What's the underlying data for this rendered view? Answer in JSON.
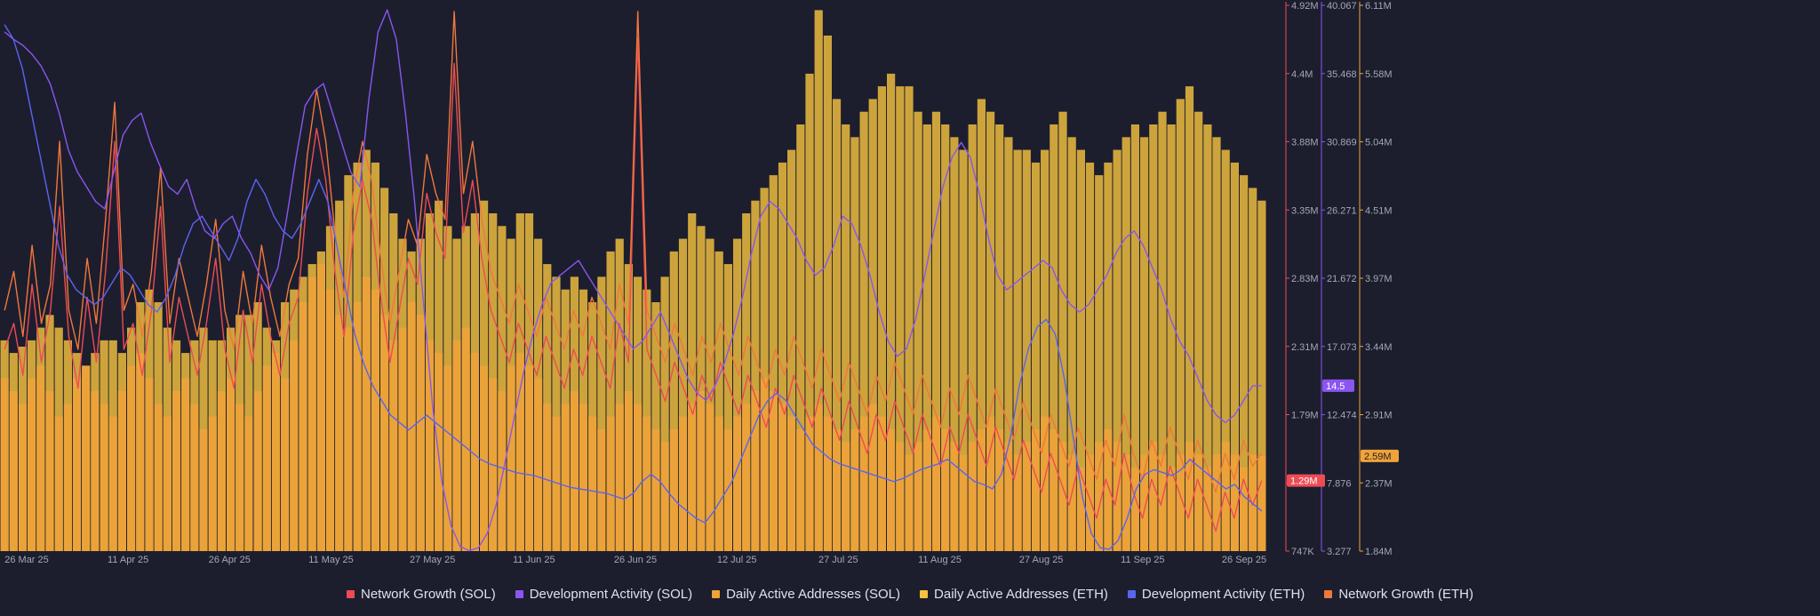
{
  "colors": {
    "background": "#1c1e2e",
    "network_growth_sol": "#ee4b55",
    "development_activity_sol": "#8a55f0",
    "daily_active_addresses_sol": "#f0a338",
    "daily_active_addresses_eth": "#f4c23f",
    "development_activity_eth": "#5a64f0",
    "network_growth_eth": "#f0773c"
  },
  "chart_data": {
    "type": "bar",
    "x_ticks": [
      "26 Mar 25",
      "11 Apr 25",
      "26 Apr 25",
      "11 May 25",
      "27 May 25",
      "11 Jun 25",
      "26 Jun 25",
      "12 Jul 25",
      "27 Jul 25",
      "11 Aug 25",
      "27 Aug 25",
      "11 Sep 25",
      "26 Sep 25"
    ],
    "x_range": [
      "2025-03-26",
      "2025-09-26"
    ],
    "axes": [
      {
        "id": "network_growth",
        "color": "#ee4b55",
        "ticks": [
          "4.92M",
          "4.4M",
          "3.88M",
          "3.35M",
          "2.83M",
          "2.31M",
          "1.79M",
          "1.29M",
          "747K"
        ],
        "range": [
          747000,
          4920000
        ]
      },
      {
        "id": "development_activity",
        "color": "#8a55f0",
        "ticks": [
          "40.067",
          "35.468",
          "30.869",
          "26.271",
          "21.672",
          "17.073",
          "12.474",
          "7.876",
          "3.277"
        ],
        "range": [
          3.277,
          40.067
        ]
      },
      {
        "id": "daily_active_addresses",
        "color": "#f0a338",
        "ticks": [
          "6.11M",
          "5.58M",
          "5.04M",
          "4.51M",
          "3.97M",
          "3.44M",
          "2.91M",
          "2.37M",
          "1.84M"
        ],
        "range": [
          1840000,
          6110000
        ]
      }
    ],
    "value_badges": [
      {
        "axis": "network_growth",
        "label": "1.29M",
        "color": "#ee4b55",
        "value": 1290000
      },
      {
        "axis": "development_activity",
        "label": "14.5",
        "color": "#8a55f0",
        "value": 14.5
      },
      {
        "axis": "daily_active_addresses",
        "label": "2.59M",
        "color": "#f0a338",
        "value": 2590000
      }
    ],
    "series": [
      {
        "name": "Daily Active Addresses (ETH)",
        "type": "bar",
        "axis": "daily_active_addresses",
        "values_millions": [
          3.5,
          3.4,
          3.45,
          3.5,
          3.6,
          3.7,
          3.6,
          3.5,
          3.4,
          3.3,
          3.4,
          3.5,
          3.5,
          3.4,
          3.6,
          3.8,
          3.9,
          3.8,
          3.6,
          3.5,
          3.4,
          3.5,
          3.6,
          3.5,
          3.5,
          3.6,
          3.7,
          3.7,
          3.8,
          3.6,
          3.5,
          3.8,
          3.9,
          4.0,
          4.1,
          4.2,
          4.4,
          4.6,
          4.8,
          4.9,
          5.0,
          4.9,
          4.7,
          4.5,
          4.3,
          4.2,
          4.3,
          4.5,
          4.6,
          4.4,
          4.3,
          4.4,
          4.5,
          4.6,
          4.5,
          4.4,
          4.3,
          4.5,
          4.5,
          4.3,
          4.1,
          4.0,
          3.9,
          4.0,
          3.9,
          3.8,
          4.0,
          4.2,
          4.3,
          4.1,
          4.0,
          3.9,
          3.8,
          4.0,
          4.2,
          4.3,
          4.5,
          4.4,
          4.3,
          4.2,
          4.1,
          4.3,
          4.5,
          4.6,
          4.7,
          4.8,
          4.9,
          5.0,
          5.2,
          5.6,
          6.1,
          5.9,
          5.4,
          5.2,
          5.1,
          5.3,
          5.4,
          5.5,
          5.6,
          5.5,
          5.5,
          5.3,
          5.2,
          5.3,
          5.2,
          5.1,
          5.0,
          5.2,
          5.4,
          5.3,
          5.2,
          5.1,
          5.0,
          5.0,
          4.9,
          5.0,
          5.2,
          5.3,
          5.1,
          5.0,
          4.9,
          4.8,
          4.9,
          5.0,
          5.1,
          5.2,
          5.1,
          5.2,
          5.3,
          5.2,
          5.4,
          5.5,
          5.3,
          5.2,
          5.1,
          5.0,
          4.9,
          4.8,
          4.7,
          4.6
        ]
      },
      {
        "name": "Daily Active Addresses (SOL)",
        "type": "bar",
        "axis": "daily_active_addresses",
        "values_millions": [
          3.2,
          3.1,
          3.0,
          3.2,
          3.3,
          3.1,
          2.9,
          3.0,
          3.2,
          3.3,
          3.1,
          3.0,
          2.9,
          3.1,
          3.3,
          3.4,
          3.2,
          3.0,
          2.9,
          3.1,
          3.2,
          3.0,
          2.8,
          2.9,
          3.1,
          3.2,
          3.0,
          2.9,
          3.1,
          3.3,
          3.4,
          3.2,
          3.5,
          3.8,
          4.0,
          4.1,
          3.9,
          3.7,
          3.6,
          3.8,
          4.0,
          3.9,
          3.7,
          3.5,
          3.6,
          3.8,
          3.7,
          3.5,
          3.4,
          3.3,
          3.5,
          3.6,
          3.4,
          3.3,
          3.2,
          3.1,
          3.3,
          3.4,
          3.3,
          3.2,
          3.0,
          2.9,
          3.0,
          3.1,
          3.0,
          2.9,
          2.8,
          2.9,
          3.0,
          3.1,
          3.0,
          2.9,
          2.8,
          2.7,
          2.8,
          2.9,
          3.0,
          3.1,
          3.0,
          2.9,
          2.8,
          2.9,
          3.0,
          3.1,
          3.2,
          3.1,
          3.0,
          2.9,
          2.8,
          2.9,
          3.0,
          2.9,
          2.8,
          2.7,
          2.8,
          2.9,
          3.0,
          2.9,
          2.8,
          2.7,
          2.6,
          2.7,
          2.8,
          2.9,
          2.8,
          2.7,
          2.6,
          2.7,
          2.8,
          2.9,
          2.8,
          2.7,
          2.6,
          2.7,
          2.8,
          2.9,
          2.8,
          2.7,
          2.6,
          2.5,
          2.6,
          2.7,
          2.8,
          2.7,
          2.6,
          2.5,
          2.6,
          2.7,
          2.6,
          2.5,
          2.6,
          2.7,
          2.6,
          2.5,
          2.6,
          2.7,
          2.6,
          2.5,
          2.6,
          2.59
        ]
      },
      {
        "name": "Network Growth (SOL)",
        "type": "line",
        "axis": "network_growth",
        "values_millions": [
          2.3,
          2.5,
          2.1,
          2.8,
          2.2,
          2.6,
          3.4,
          2.4,
          2.0,
          2.7,
          2.2,
          2.9,
          3.9,
          2.3,
          2.5,
          2.1,
          2.6,
          3.4,
          2.2,
          2.7,
          2.4,
          2.1,
          2.5,
          3.0,
          2.3,
          2.0,
          2.6,
          2.2,
          2.8,
          2.4,
          2.1,
          2.5,
          2.7,
          3.5,
          4.0,
          3.6,
          2.9,
          2.4,
          3.2,
          3.6,
          3.3,
          2.7,
          2.2,
          2.6,
          3.0,
          2.8,
          3.5,
          3.2,
          3.0,
          4.5,
          3.2,
          3.6,
          3.0,
          2.6,
          2.4,
          2.2,
          2.5,
          2.3,
          2.1,
          2.4,
          2.2,
          2.0,
          2.3,
          2.1,
          2.4,
          2.2,
          2.0,
          2.5,
          2.2,
          4.7,
          2.3,
          2.1,
          1.9,
          2.2,
          2.0,
          1.8,
          2.1,
          1.9,
          2.2,
          2.0,
          1.8,
          2.1,
          1.9,
          1.7,
          2.0,
          1.8,
          2.1,
          1.9,
          1.7,
          2.0,
          1.8,
          1.6,
          1.9,
          1.7,
          1.5,
          1.8,
          1.6,
          1.9,
          1.7,
          1.5,
          1.8,
          1.6,
          1.4,
          1.7,
          1.5,
          1.8,
          1.6,
          1.4,
          1.7,
          1.5,
          1.3,
          1.6,
          1.4,
          1.2,
          1.5,
          1.3,
          1.1,
          1.4,
          1.2,
          1.0,
          1.3,
          1.1,
          1.5,
          1.2,
          1.0,
          1.3,
          1.1,
          1.4,
          1.2,
          1.0,
          1.3,
          1.1,
          0.9,
          1.2,
          1.0,
          1.3,
          1.1,
          1.29
        ]
      },
      {
        "name": "Network Growth (ETH)",
        "type": "line",
        "axis": "network_growth",
        "values_millions": [
          2.6,
          2.9,
          2.4,
          3.1,
          2.5,
          2.8,
          3.9,
          2.6,
          2.3,
          3.0,
          2.5,
          3.3,
          4.2,
          2.6,
          2.8,
          2.4,
          2.9,
          3.7,
          2.5,
          3.0,
          2.7,
          2.4,
          2.8,
          3.3,
          2.6,
          2.3,
          2.9,
          2.5,
          3.1,
          2.7,
          2.4,
          2.8,
          3.0,
          3.8,
          4.3,
          3.9,
          3.2,
          2.7,
          3.5,
          3.9,
          3.6,
          3.0,
          2.5,
          2.9,
          3.3,
          3.1,
          3.8,
          3.5,
          3.3,
          4.9,
          3.5,
          3.9,
          3.3,
          2.9,
          2.7,
          2.5,
          2.8,
          2.6,
          2.4,
          2.7,
          2.5,
          2.3,
          2.6,
          2.4,
          2.7,
          2.5,
          2.3,
          2.8,
          2.5,
          4.9,
          2.6,
          2.4,
          2.2,
          2.5,
          2.3,
          2.1,
          2.4,
          2.2,
          2.5,
          2.3,
          2.1,
          2.4,
          2.2,
          2.0,
          2.3,
          2.1,
          2.4,
          2.2,
          2.0,
          2.3,
          2.1,
          1.9,
          2.2,
          2.0,
          1.8,
          2.1,
          1.9,
          2.2,
          2.0,
          1.8,
          2.1,
          1.9,
          1.7,
          2.0,
          1.8,
          2.1,
          1.9,
          1.7,
          2.0,
          1.8,
          1.6,
          1.9,
          1.7,
          1.5,
          1.8,
          1.6,
          1.4,
          1.7,
          1.5,
          1.3,
          1.6,
          1.4,
          1.8,
          1.5,
          1.3,
          1.6,
          1.4,
          1.7,
          1.5,
          1.3,
          1.6,
          1.4,
          1.2,
          1.5,
          1.3,
          1.6,
          1.4,
          1.5
        ]
      },
      {
        "name": "Development Activity (SOL)",
        "type": "line",
        "axis": "development_activity",
        "values": [
          38.5,
          38.0,
          37.6,
          37.0,
          36.2,
          35.0,
          33.0,
          30.5,
          29.0,
          28.0,
          27.0,
          26.5,
          29.0,
          31.5,
          32.5,
          33.0,
          31.0,
          29.5,
          28.0,
          27.5,
          28.5,
          26.5,
          25.0,
          24.5,
          25.5,
          26.0,
          24.5,
          23.5,
          22.0,
          21.0,
          22.5,
          26.0,
          30.0,
          33.5,
          34.5,
          35.0,
          33.0,
          31.0,
          29.0,
          28.0,
          34.0,
          38.5,
          40.0,
          38.0,
          33.0,
          27.0,
          20.0,
          13.0,
          8.0,
          5.0,
          3.6,
          3.3,
          3.5,
          4.5,
          6.5,
          9.5,
          12.5,
          15.5,
          18.0,
          20.0,
          21.5,
          22.0,
          22.5,
          23.0,
          22.0,
          21.0,
          20.0,
          19.0,
          18.0,
          17.0,
          17.5,
          18.5,
          19.5,
          18.0,
          16.5,
          15.0,
          14.0,
          13.5,
          14.5,
          16.0,
          18.0,
          20.5,
          23.5,
          26.0,
          27.0,
          26.5,
          25.5,
          24.5,
          23.0,
          22.0,
          22.5,
          24.0,
          26.0,
          25.5,
          24.0,
          22.0,
          19.5,
          17.5,
          16.5,
          17.0,
          19.0,
          22.0,
          25.0,
          28.0,
          30.0,
          31.0,
          30.0,
          27.5,
          24.5,
          22.0,
          21.0,
          21.5,
          22.0,
          22.5,
          23.0,
          22.5,
          21.0,
          20.0,
          19.5,
          20.0,
          21.0,
          22.0,
          23.5,
          24.5,
          25.0,
          24.0,
          22.5,
          21.0,
          19.0,
          17.5,
          16.5,
          15.0,
          13.5,
          12.5,
          12.0,
          12.5,
          13.5,
          14.5,
          14.5
        ]
      },
      {
        "name": "Development Activity (ETH)",
        "type": "line",
        "axis": "development_activity",
        "values": [
          39.0,
          38.0,
          36.0,
          33.0,
          30.0,
          27.0,
          24.0,
          22.0,
          21.0,
          20.5,
          20.0,
          20.5,
          21.5,
          22.5,
          22.0,
          21.0,
          20.0,
          19.5,
          20.5,
          22.0,
          24.0,
          25.5,
          26.0,
          25.0,
          24.0,
          23.0,
          24.5,
          27.0,
          28.5,
          27.5,
          26.0,
          25.0,
          24.5,
          25.5,
          27.0,
          28.5,
          27.0,
          24.0,
          21.0,
          18.0,
          16.0,
          14.5,
          13.5,
          12.5,
          12.0,
          11.5,
          12.0,
          12.5,
          12.0,
          11.5,
          11.0,
          10.5,
          10.0,
          9.5,
          9.2,
          9.0,
          8.8,
          8.6,
          8.5,
          8.4,
          8.2,
          8.0,
          7.8,
          7.6,
          7.5,
          7.4,
          7.3,
          7.2,
          7.0,
          6.8,
          7.2,
          8.0,
          8.5,
          8.0,
          7.2,
          6.5,
          6.0,
          5.5,
          5.2,
          6.0,
          7.0,
          8.0,
          9.5,
          11.0,
          12.5,
          13.5,
          14.0,
          13.5,
          12.5,
          11.5,
          10.5,
          10.0,
          9.5,
          9.2,
          9.0,
          8.8,
          8.6,
          8.4,
          8.2,
          8.0,
          8.2,
          8.5,
          8.8,
          9.0,
          9.2,
          9.5,
          9.0,
          8.5,
          8.0,
          7.8,
          7.5,
          8.5,
          11.0,
          14.5,
          17.0,
          18.5,
          19.0,
          18.0,
          15.0,
          11.0,
          7.0,
          4.5,
          3.5,
          3.4,
          4.0,
          5.5,
          7.5,
          8.5,
          8.8,
          8.6,
          8.4,
          8.8,
          9.5,
          9.0,
          8.5,
          8.0,
          7.5,
          7.8,
          7.0,
          6.5,
          6.0
        ]
      }
    ]
  },
  "legend": [
    {
      "label": "Network Growth (SOL)",
      "color": "#ee4b55"
    },
    {
      "label": "Development Activity (SOL)",
      "color": "#8a55f0"
    },
    {
      "label": "Daily Active Addresses (SOL)",
      "color": "#f0a338"
    },
    {
      "label": "Daily Active Addresses (ETH)",
      "color": "#f4c23f"
    },
    {
      "label": "Development Activity (ETH)",
      "color": "#5a64f0"
    },
    {
      "label": "Network Growth (ETH)",
      "color": "#f0773c"
    }
  ]
}
